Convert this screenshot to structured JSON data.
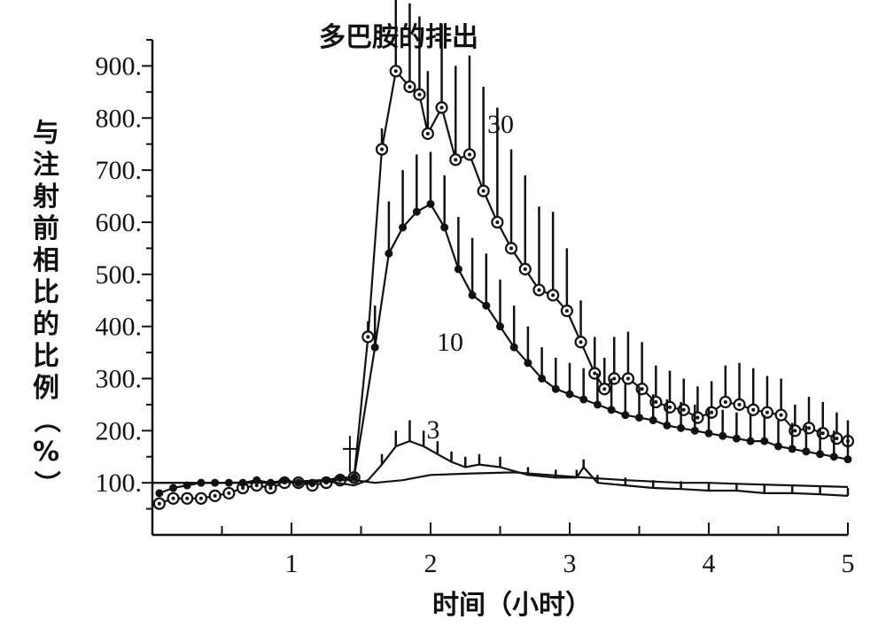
{
  "chart_data": {
    "type": "line",
    "title": "多巴胺的排出",
    "xlabel": "时间（小时）",
    "ylabel": "与注射前相比的比例（%）",
    "xlim": [
      0,
      5
    ],
    "ylim": [
      0,
      950
    ],
    "x_ticks": [
      "1",
      "2",
      "3",
      "4",
      "5"
    ],
    "y_ticks": [
      "100.",
      "200.",
      "300.",
      "400.",
      "500.",
      "600.",
      "700.",
      "800.",
      "900."
    ],
    "grid": false,
    "injection_marker_x": 1.42,
    "series": [
      {
        "name": "30",
        "marker": "open-circle",
        "x": [
          0.05,
          0.15,
          0.25,
          0.35,
          0.45,
          0.55,
          0.65,
          0.75,
          0.85,
          0.95,
          1.05,
          1.15,
          1.25,
          1.35,
          1.45,
          1.55,
          1.65,
          1.75,
          1.85,
          1.92,
          1.98,
          2.08,
          2.18,
          2.28,
          2.38,
          2.48,
          2.58,
          2.68,
          2.78,
          2.88,
          2.98,
          3.08,
          3.18,
          3.25,
          3.32,
          3.42,
          3.52,
          3.62,
          3.72,
          3.82,
          3.92,
          4.02,
          4.12,
          4.22,
          4.32,
          4.42,
          4.52,
          4.62,
          4.72,
          4.82,
          4.92,
          5.0
        ],
        "values": [
          60,
          70,
          70,
          70,
          75,
          80,
          90,
          95,
          90,
          100,
          100,
          95,
          100,
          105,
          110,
          380,
          740,
          890,
          860,
          845,
          770,
          820,
          720,
          730,
          660,
          600,
          550,
          510,
          470,
          460,
          430,
          370,
          310,
          280,
          300,
          300,
          280,
          255,
          245,
          240,
          225,
          235,
          255,
          250,
          240,
          235,
          230,
          200,
          205,
          195,
          185,
          180
        ],
        "error": [
          0,
          0,
          0,
          0,
          0,
          0,
          0,
          0,
          0,
          0,
          0,
          0,
          0,
          0,
          0,
          30,
          40,
          160,
          160,
          150,
          120,
          160,
          180,
          190,
          200,
          220,
          190,
          180,
          160,
          160,
          120,
          80,
          70,
          60,
          80,
          90,
          90,
          70,
          70,
          60,
          60,
          60,
          70,
          80,
          80,
          70,
          70,
          50,
          60,
          60,
          50,
          40
        ]
      },
      {
        "name": "10",
        "marker": "filled-dot",
        "x": [
          0.05,
          0.15,
          0.25,
          0.35,
          0.45,
          0.55,
          0.65,
          0.75,
          0.85,
          0.95,
          1.05,
          1.15,
          1.25,
          1.35,
          1.45,
          1.6,
          1.7,
          1.8,
          1.9,
          2.0,
          2.1,
          2.2,
          2.3,
          2.4,
          2.5,
          2.6,
          2.7,
          2.8,
          2.9,
          3.0,
          3.1,
          3.2,
          3.3,
          3.4,
          3.5,
          3.6,
          3.7,
          3.8,
          3.9,
          4.0,
          4.1,
          4.2,
          4.3,
          4.4,
          4.5,
          4.6,
          4.7,
          4.8,
          4.9,
          5.0
        ],
        "values": [
          80,
          90,
          95,
          100,
          100,
          100,
          100,
          105,
          100,
          105,
          100,
          100,
          105,
          110,
          110,
          360,
          540,
          590,
          620,
          635,
          590,
          510,
          460,
          440,
          400,
          360,
          330,
          300,
          280,
          270,
          260,
          250,
          240,
          230,
          225,
          220,
          210,
          205,
          200,
          195,
          190,
          185,
          180,
          180,
          170,
          165,
          160,
          155,
          150,
          145
        ],
        "error": [
          0,
          0,
          0,
          0,
          0,
          0,
          0,
          0,
          0,
          0,
          0,
          0,
          0,
          0,
          0,
          80,
          100,
          110,
          110,
          100,
          100,
          100,
          110,
          100,
          90,
          80,
          70,
          60,
          60,
          60,
          60,
          60,
          60,
          60,
          60,
          50,
          50,
          50,
          50,
          50,
          50,
          50,
          50,
          50,
          50,
          50,
          50,
          50,
          50,
          50
        ]
      },
      {
        "name": "3",
        "marker": "none",
        "x": [
          0.0,
          0.3,
          0.6,
          0.9,
          1.2,
          1.45,
          1.55,
          1.65,
          1.75,
          1.85,
          1.95,
          2.05,
          2.15,
          2.25,
          2.35,
          2.5,
          2.7,
          2.9,
          3.05,
          3.1,
          3.2,
          3.4,
          3.6,
          3.8,
          4.0,
          4.2,
          4.4,
          4.6,
          4.8,
          5.0
        ],
        "values": [
          100,
          100,
          100,
          100,
          105,
          95,
          105,
          135,
          170,
          180,
          170,
          155,
          140,
          130,
          135,
          130,
          115,
          110,
          110,
          130,
          100,
          95,
          90,
          88,
          85,
          85,
          80,
          80,
          78,
          75
        ],
        "error": [
          0,
          0,
          0,
          0,
          0,
          0,
          0,
          20,
          30,
          40,
          30,
          25,
          20,
          20,
          20,
          20,
          15,
          15,
          15,
          15,
          15,
          15,
          15,
          15,
          15,
          15,
          15,
          15,
          15,
          15
        ]
      },
      {
        "name": "",
        "marker": "none",
        "x": [
          0.0,
          0.5,
          1.0,
          1.3,
          1.45,
          1.6,
          1.8,
          2.0,
          2.3,
          2.6,
          3.0,
          3.4,
          3.8,
          4.0,
          4.2,
          4.6,
          5.0
        ],
        "values": [
          100,
          100,
          102,
          105,
          105,
          100,
          105,
          115,
          118,
          120,
          112,
          105,
          100,
          100,
          98,
          95,
          92
        ],
        "error": []
      }
    ]
  }
}
